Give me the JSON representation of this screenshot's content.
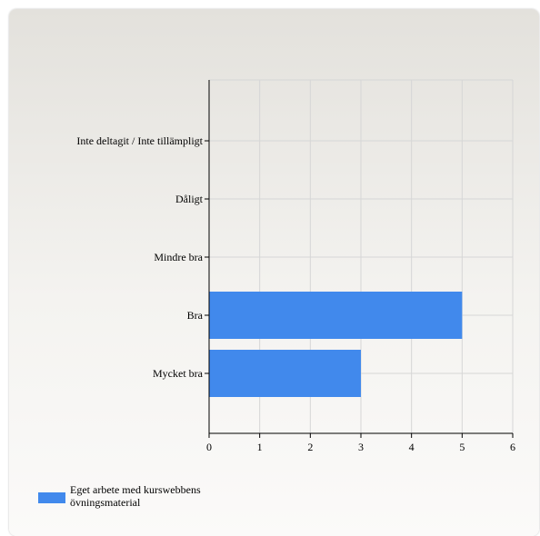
{
  "chart_data": {
    "type": "bar",
    "orientation": "horizontal",
    "categories": [
      "Inte deltagit / Inte tillämpligt",
      "Dåligt",
      "Mindre bra",
      "Bra",
      "Mycket bra"
    ],
    "series": [
      {
        "name": "Eget arbete med kurswebbens övningsmaterial",
        "values": [
          0,
          0,
          0,
          5,
          3
        ],
        "color": "#4189ec"
      }
    ],
    "xlim": [
      0,
      6
    ],
    "xticks": [
      "0",
      "1",
      "2",
      "3",
      "4",
      "5",
      "6"
    ],
    "grid": true,
    "legend_position": "bottom-left"
  },
  "legend": {
    "label": "Eget arbete med kurswebbens övningsmaterial",
    "color": "#4189ec"
  }
}
